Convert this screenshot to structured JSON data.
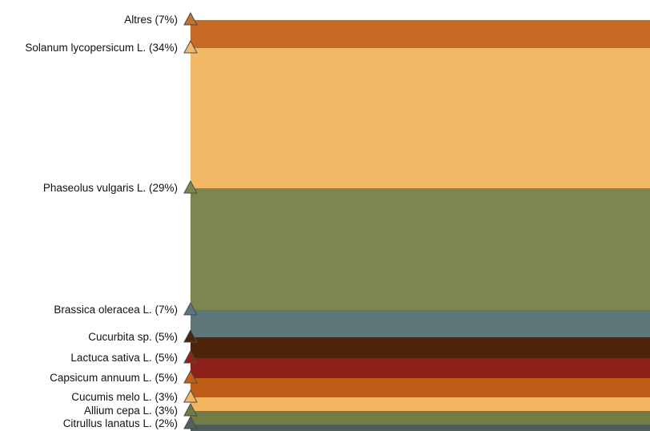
{
  "chart_data": {
    "type": "bar",
    "orientation": "stacked-proportional",
    "categories": [
      "Altres (7%)",
      "Solanum lycopersicum L. (34%)",
      "Phaseolus vulgaris L. (29%)",
      "Brassica oleracea L. (7%)",
      "Cucurbita sp. (5%)",
      "Lactuca sativa L. (5%)",
      "Capsicum annuum L. (5%)",
      "Cucumis melo L. (3%)",
      "Allium cepa L. (3%)",
      "Citrullus lanatus L. (2%)"
    ],
    "values": [
      7,
      34,
      29,
      7,
      5,
      5,
      5,
      3,
      3,
      2
    ],
    "colors": [
      "#c66a24",
      "#f2b967",
      "#7f8550",
      "#5e777a",
      "#4f2509",
      "#8b2019",
      "#bd5c17",
      "#f2b45e",
      "#737c45",
      "#4d5f5a"
    ],
    "marker_colors": [
      "#c4702e",
      "#f3b96a",
      "#7d8652",
      "#5d7780",
      "#4c2408",
      "#8e241b",
      "#c55f16",
      "#f4b862",
      "#707b45",
      "#4e625e"
    ]
  }
}
